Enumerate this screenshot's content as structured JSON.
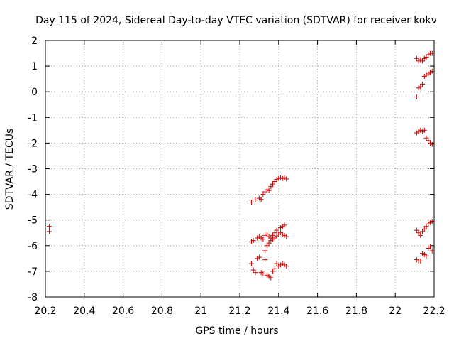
{
  "chart_data": {
    "type": "scatter",
    "title": "Day 115 of 2024, Sidereal Day-to-day VTEC variation (SDTVAR) for receiver kokv",
    "xlabel": "GPS time / hours",
    "ylabel": "SDTVAR / TECUs",
    "xlim": [
      20.2,
      22.2
    ],
    "ylim": [
      -8,
      2
    ],
    "xticks": [
      20.2,
      20.4,
      20.6,
      20.8,
      21,
      21.2,
      21.4,
      21.6,
      21.8,
      22,
      22.2
    ],
    "xtick_labels": [
      "20.2",
      "20.4",
      "20.6",
      "20.8",
      "21",
      "21.2",
      "21.4",
      "21.6",
      "21.8",
      "22",
      "22.2"
    ],
    "yticks": [
      -8,
      -7,
      -6,
      -5,
      -4,
      -3,
      -2,
      -1,
      0,
      1,
      2
    ],
    "ytick_labels": [
      "-8",
      "-7",
      "-6",
      "-5",
      "-4",
      "-3",
      "-2",
      "-1",
      "0",
      "1",
      "2"
    ],
    "grid": true,
    "marker": "+",
    "color": "#cc0000",
    "series": [
      {
        "name": "SDTVAR",
        "points": [
          [
            20.22,
            -5.25
          ],
          [
            20.22,
            -5.45
          ],
          [
            21.26,
            -4.3
          ],
          [
            21.28,
            -4.22
          ],
          [
            21.3,
            -4.15
          ],
          [
            21.31,
            -4.2
          ],
          [
            21.32,
            -4.0
          ],
          [
            21.33,
            -3.9
          ],
          [
            21.34,
            -3.82
          ],
          [
            21.35,
            -3.85
          ],
          [
            21.36,
            -3.7
          ],
          [
            21.37,
            -3.6
          ],
          [
            21.38,
            -3.5
          ],
          [
            21.39,
            -3.42
          ],
          [
            21.4,
            -3.38
          ],
          [
            21.41,
            -3.35
          ],
          [
            21.42,
            -3.38
          ],
          [
            21.43,
            -3.35
          ],
          [
            21.44,
            -3.4
          ],
          [
            21.26,
            -5.85
          ],
          [
            21.27,
            -5.8
          ],
          [
            21.29,
            -5.7
          ],
          [
            21.3,
            -5.65
          ],
          [
            21.31,
            -5.7
          ],
          [
            21.32,
            -5.75
          ],
          [
            21.33,
            -5.6
          ],
          [
            21.34,
            -5.55
          ],
          [
            21.35,
            -5.65
          ],
          [
            21.36,
            -5.8
          ],
          [
            21.37,
            -5.75
          ],
          [
            21.38,
            -5.7
          ],
          [
            21.39,
            -5.62
          ],
          [
            21.4,
            -5.55
          ],
          [
            21.41,
            -5.5
          ],
          [
            21.42,
            -5.55
          ],
          [
            21.43,
            -5.6
          ],
          [
            21.44,
            -5.65
          ],
          [
            21.33,
            -6.2
          ],
          [
            21.34,
            -6.0
          ],
          [
            21.35,
            -5.9
          ],
          [
            21.36,
            -5.7
          ],
          [
            21.37,
            -5.6
          ],
          [
            21.38,
            -5.5
          ],
          [
            21.39,
            -5.4
          ],
          [
            21.41,
            -5.3
          ],
          [
            21.42,
            -5.25
          ],
          [
            21.43,
            -5.2
          ],
          [
            21.26,
            -6.7
          ],
          [
            21.27,
            -6.95
          ],
          [
            21.28,
            -7.05
          ],
          [
            21.29,
            -6.5
          ],
          [
            21.3,
            -6.45
          ],
          [
            21.31,
            -7.05
          ],
          [
            21.32,
            -7.1
          ],
          [
            21.33,
            -6.55
          ],
          [
            21.34,
            -7.15
          ],
          [
            21.35,
            -7.2
          ],
          [
            21.36,
            -7.25
          ],
          [
            21.37,
            -7.0
          ],
          [
            21.38,
            -6.9
          ],
          [
            21.39,
            -6.7
          ],
          [
            21.4,
            -6.8
          ],
          [
            21.41,
            -6.75
          ],
          [
            21.42,
            -6.7
          ],
          [
            21.43,
            -6.75
          ],
          [
            21.44,
            -6.8
          ],
          [
            22.11,
            1.3
          ],
          [
            22.12,
            1.2
          ],
          [
            22.13,
            1.25
          ],
          [
            22.14,
            1.2
          ],
          [
            22.15,
            1.3
          ],
          [
            22.16,
            1.35
          ],
          [
            22.17,
            1.45
          ],
          [
            22.18,
            1.5
          ],
          [
            22.19,
            1.5
          ],
          [
            22.11,
            -0.2
          ],
          [
            22.12,
            0.15
          ],
          [
            22.13,
            0.2
          ],
          [
            22.14,
            0.3
          ],
          [
            22.15,
            0.6
          ],
          [
            22.16,
            0.65
          ],
          [
            22.17,
            0.7
          ],
          [
            22.18,
            0.75
          ],
          [
            22.19,
            0.8
          ],
          [
            22.11,
            -1.6
          ],
          [
            22.12,
            -1.55
          ],
          [
            22.13,
            -1.5
          ],
          [
            22.14,
            -1.55
          ],
          [
            22.15,
            -1.5
          ],
          [
            22.16,
            -1.8
          ],
          [
            22.17,
            -1.9
          ],
          [
            22.18,
            -2.0
          ],
          [
            22.19,
            -2.05
          ],
          [
            22.11,
            -5.4
          ],
          [
            22.12,
            -5.5
          ],
          [
            22.13,
            -5.6
          ],
          [
            22.14,
            -5.45
          ],
          [
            22.15,
            -5.35
          ],
          [
            22.16,
            -5.25
          ],
          [
            22.17,
            -5.15
          ],
          [
            22.18,
            -5.1
          ],
          [
            22.19,
            -5.05
          ],
          [
            22.11,
            -6.55
          ],
          [
            22.12,
            -6.6
          ],
          [
            22.13,
            -6.6
          ],
          [
            22.14,
            -6.3
          ],
          [
            22.15,
            -6.35
          ],
          [
            22.16,
            -6.4
          ],
          [
            22.17,
            -6.1
          ],
          [
            22.18,
            -6.05
          ],
          [
            22.19,
            -6.2
          ]
        ]
      }
    ]
  }
}
